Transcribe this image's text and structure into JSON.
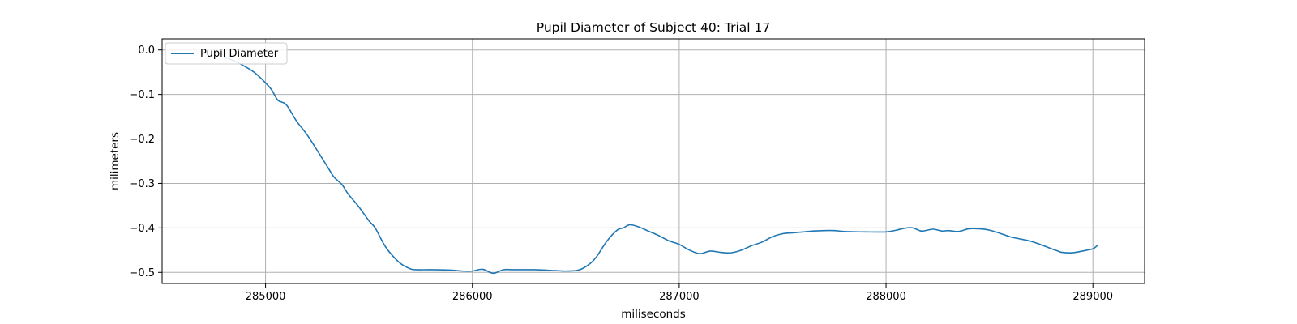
{
  "chart_data": {
    "type": "line",
    "title": "Pupil Diameter of Subject 40: Trial 17",
    "xlabel": "miliseconds",
    "ylabel": "milimeters",
    "xlim": [
      284500,
      289250
    ],
    "ylim": [
      -0.525,
      0.025
    ],
    "xticks": [
      285000,
      286000,
      287000,
      288000,
      289000
    ],
    "yticks": [
      0.0,
      -0.1,
      -0.2,
      -0.3,
      -0.4,
      -0.5
    ],
    "xtick_labels": [
      "285000",
      "286000",
      "287000",
      "288000",
      "289000"
    ],
    "ytick_labels": [
      "0.0",
      "−0.1",
      "−0.2",
      "−0.3",
      "−0.4",
      "−0.5"
    ],
    "grid": true,
    "legend": {
      "position": "top-left"
    },
    "series": [
      {
        "name": "Pupil Diameter",
        "color": "#1f77b4",
        "x": [
          284800,
          284850,
          284900,
          284950,
          285000,
          285030,
          285060,
          285100,
          285150,
          285200,
          285250,
          285300,
          285330,
          285370,
          285400,
          285450,
          285500,
          285530,
          285570,
          285600,
          285650,
          285700,
          285730,
          285800,
          285900,
          285950,
          286000,
          286050,
          286100,
          286150,
          286200,
          286300,
          286400,
          286450,
          286500,
          286530,
          286570,
          286600,
          286650,
          286700,
          286730,
          286760,
          286800,
          286850,
          286900,
          286950,
          287000,
          287050,
          287100,
          287150,
          287200,
          287250,
          287300,
          287350,
          287400,
          287450,
          287500,
          287550,
          287600,
          287650,
          287700,
          287750,
          287800,
          287900,
          288000,
          288050,
          288100,
          288130,
          288170,
          288200,
          288230,
          288270,
          288300,
          288350,
          288400,
          288450,
          288500,
          288550,
          288600,
          288650,
          288700,
          288750,
          288800,
          288830,
          288850,
          288900,
          288950,
          289000,
          289020
        ],
        "values": [
          -0.015,
          -0.025,
          -0.037,
          -0.052,
          -0.074,
          -0.09,
          -0.113,
          -0.123,
          -0.16,
          -0.19,
          -0.226,
          -0.263,
          -0.285,
          -0.303,
          -0.324,
          -0.352,
          -0.384,
          -0.4,
          -0.435,
          -0.455,
          -0.479,
          -0.492,
          -0.494,
          -0.494,
          -0.495,
          -0.497,
          -0.497,
          -0.493,
          -0.502,
          -0.494,
          -0.494,
          -0.494,
          -0.496,
          -0.497,
          -0.496,
          -0.492,
          -0.48,
          -0.465,
          -0.43,
          -0.405,
          -0.4,
          -0.393,
          -0.397,
          -0.407,
          -0.417,
          -0.429,
          -0.437,
          -0.45,
          -0.458,
          -0.452,
          -0.455,
          -0.456,
          -0.45,
          -0.44,
          -0.432,
          -0.42,
          -0.413,
          -0.411,
          -0.409,
          -0.407,
          -0.406,
          -0.406,
          -0.408,
          -0.409,
          -0.409,
          -0.405,
          -0.4,
          -0.4,
          -0.407,
          -0.405,
          -0.403,
          -0.407,
          -0.406,
          -0.408,
          -0.402,
          -0.402,
          -0.405,
          -0.412,
          -0.42,
          -0.425,
          -0.43,
          -0.438,
          -0.447,
          -0.452,
          -0.455,
          -0.456,
          -0.452,
          -0.447,
          -0.44
        ]
      }
    ]
  }
}
